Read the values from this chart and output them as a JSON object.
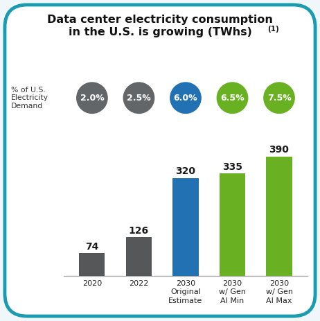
{
  "title_line1": "Data center electricity consumption",
  "title_line2": "in the U.S. is growing (TWhs)",
  "title_superscript": "(1)",
  "background_color": "#f0f7fb",
  "inner_bg_color": "#ffffff",
  "border_color": "#1a9bb0",
  "bar_values": [
    74,
    126,
    320,
    335,
    390
  ],
  "bar_colors": [
    "#555759",
    "#555759",
    "#2271b3",
    "#6ab023",
    "#6ab023"
  ],
  "bar_labels": [
    "2020",
    "2022",
    "2030\nOriginal\nEstimate",
    "2030\nw/ Gen\nAI Min",
    "2030\nw/ Gen\nAI Max"
  ],
  "circle_values": [
    "2.0%",
    "2.5%",
    "6.0%",
    "6.5%",
    "7.5%"
  ],
  "circle_colors": [
    "#636669",
    "#636669",
    "#2271b3",
    "#6ab023",
    "#6ab023"
  ],
  "side_label": "% of U.S.\nElectricity\nDemand",
  "ylim": [
    0,
    450
  ],
  "xlim": [
    -0.6,
    4.6
  ],
  "title_fontsize": 11.5,
  "bar_label_fontsize": 10,
  "tick_fontsize": 8,
  "circle_fontsize": 9
}
